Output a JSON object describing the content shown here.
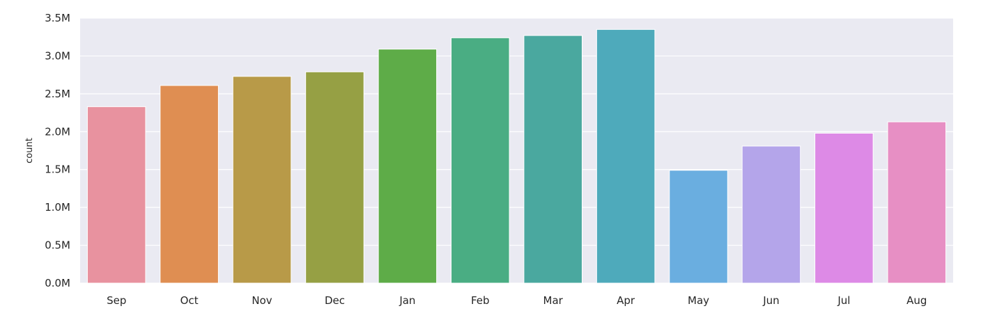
{
  "chart_data": {
    "type": "bar",
    "title": "",
    "xlabel": "",
    "ylabel": "count",
    "categories": [
      "Sep",
      "Oct",
      "Nov",
      "Dec",
      "Jan",
      "Feb",
      "Mar",
      "Apr",
      "May",
      "Jun",
      "Jul",
      "Aug"
    ],
    "values": [
      2330000,
      2610000,
      2730000,
      2790000,
      3090000,
      3240000,
      3270000,
      3350000,
      1490000,
      1810000,
      1980000,
      2130000
    ],
    "colors": [
      "#e8929f",
      "#df8e52",
      "#b89a48",
      "#96a044",
      "#5eac48",
      "#4aad83",
      "#4aa89f",
      "#4eaabb",
      "#6aaee0",
      "#b4a5ea",
      "#dd8ae6",
      "#e78fc4"
    ],
    "ylim": [
      0,
      3500000
    ],
    "yticks": [
      0,
      500000,
      1000000,
      1500000,
      2000000,
      2500000,
      3000000,
      3500000
    ],
    "ytick_labels": [
      "0.0M",
      "0.5M",
      "1.0M",
      "1.5M",
      "2.0M",
      "2.5M",
      "3.0M",
      "3.5M"
    ],
    "grid": true,
    "background": "#eaeaf2",
    "grid_color": "#ffffff"
  }
}
